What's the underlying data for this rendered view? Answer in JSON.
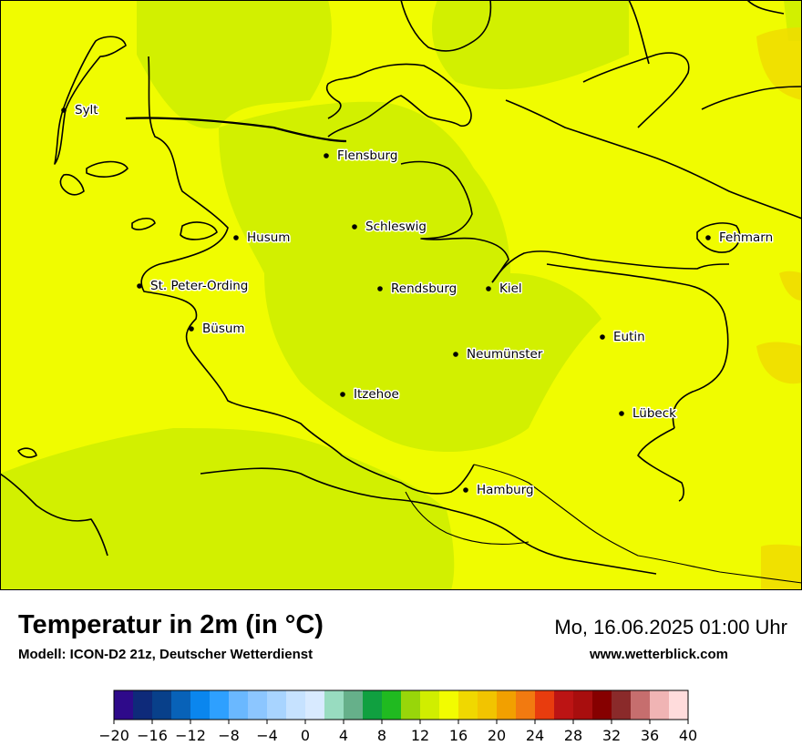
{
  "map": {
    "cities": [
      {
        "name": "Sylt"
      },
      {
        "name": "Flensburg"
      },
      {
        "name": "Schleswig"
      },
      {
        "name": "Husum"
      },
      {
        "name": "Fehmarn"
      },
      {
        "name": "St. Peter-Ording"
      },
      {
        "name": "Rendsburg"
      },
      {
        "name": "Kiel"
      },
      {
        "name": "Büsum"
      },
      {
        "name": "Eutin"
      },
      {
        "name": "Neumünster"
      },
      {
        "name": "Itzehoe"
      },
      {
        "name": "Lübeck"
      },
      {
        "name": "Hamburg"
      }
    ]
  },
  "header": {
    "title": "Temperatur in 2m (in °C)",
    "model": "Modell: ICON-D2 21z, Deutscher Wetterdienst",
    "datetime": "Mo, 16.06.2025 01:00 Uhr",
    "site": "www.wetterblick.com"
  },
  "legend": {
    "tick_labels": [
      "−20",
      "−16",
      "−12",
      "−8",
      "−4",
      "0",
      "4",
      "8",
      "12",
      "16",
      "20",
      "24",
      "28",
      "32",
      "36",
      "40"
    ],
    "colors": [
      "#2e0a8a",
      "#0e2a7a",
      "#08408a",
      "#0862b8",
      "#0a86ee",
      "#2ea0ff",
      "#6ab8ff",
      "#8cc6ff",
      "#a8d4ff",
      "#c6e2ff",
      "#d8eaff",
      "#98dcc0",
      "#66b08a",
      "#10a040",
      "#20ba20",
      "#98d60a",
      "#d0ee00",
      "#f2fc00",
      "#f0d800",
      "#f2c400",
      "#f2a000",
      "#f27a10",
      "#e83c0e",
      "#bc1414",
      "#a80e0e",
      "#860000",
      "#8a2a2a",
      "#c66e6e",
      "#f0b4b4",
      "#ffdcdc"
    ]
  }
}
